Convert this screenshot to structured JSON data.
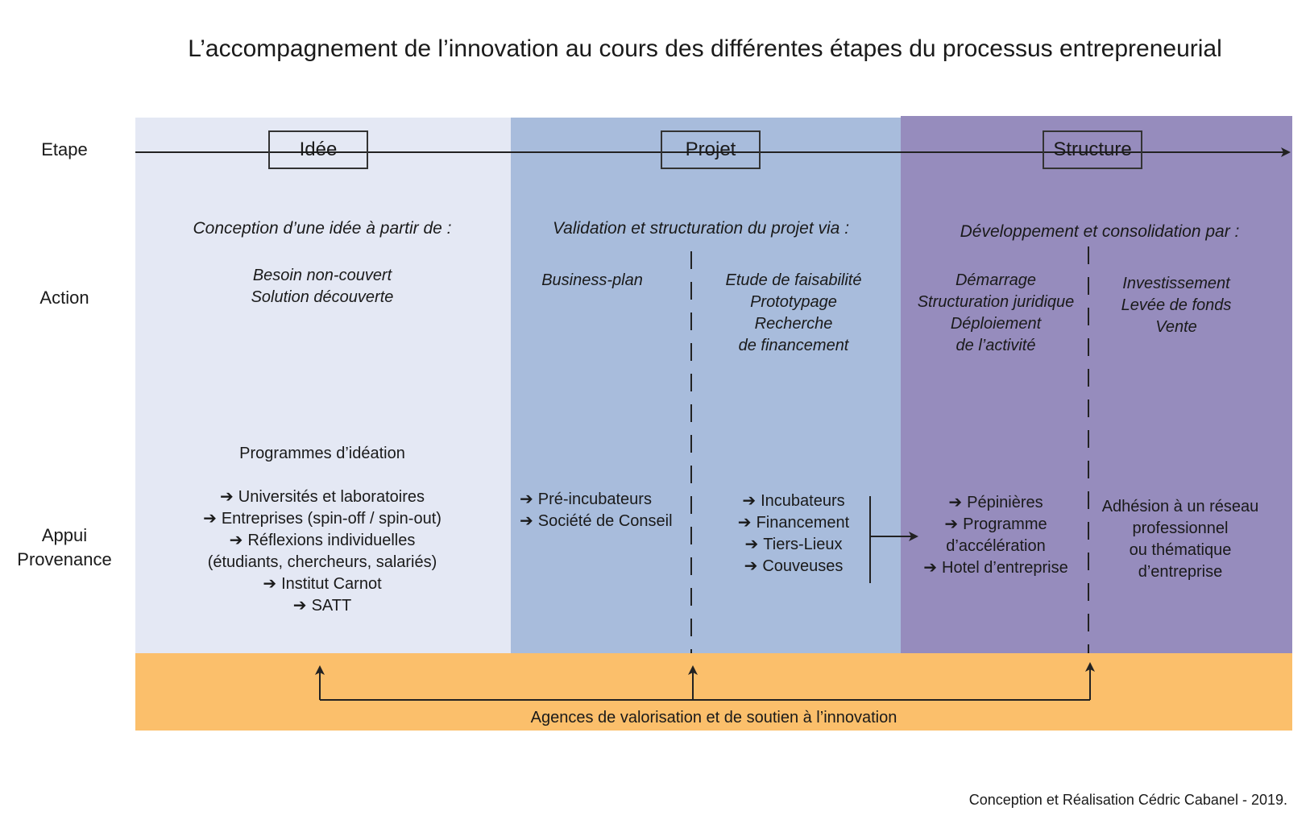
{
  "title": "L’accompagnement de l’innovation au cours des différentes étapes du processus entrepreneurial",
  "row_labels": {
    "etape": "Etape",
    "action": "Action",
    "appui_line1": "Appui",
    "appui_line2": "Provenance"
  },
  "stages": [
    "Idée",
    "Projet",
    "Structure"
  ],
  "actions": {
    "idee": {
      "heading": "Conception d’une idée à partir de :",
      "items": [
        "Besoin non-couvert",
        "Solution découverte"
      ]
    },
    "projet": {
      "heading": "Validation et structuration du projet via :",
      "left_items": [
        "Business-plan"
      ],
      "right_items": [
        "Etude de faisabilité",
        "Prototypage",
        "Recherche",
        "de financement"
      ]
    },
    "structure": {
      "heading": "Développement et consolidation par :",
      "left_items": [
        "Démarrage",
        "Structuration juridique",
        "Déploiement",
        "de l’activité"
      ],
      "right_items": [
        "Investissement",
        "Levée de fonds",
        "Vente"
      ]
    }
  },
  "appui": {
    "idee": {
      "heading": "Programmes d’idéation",
      "items": [
        "Universités et laboratoires",
        "Entreprises (spin-off / spin-out)",
        "Réflexions individuelles",
        "(étudiants, chercheurs, salariés)",
        "Institut Carnot",
        "SATT"
      ]
    },
    "projet_left": [
      "Pré-incubateurs",
      "Société de Conseil"
    ],
    "projet_right": [
      "Incubateurs",
      "Financement",
      "Tiers-Lieux",
      "Couveuses"
    ],
    "structure_left": [
      "Pépinières",
      "Programme",
      "d’accélération",
      "Hotel d’entreprise"
    ],
    "structure_right": [
      "Adhésion à un réseau",
      "professionnel",
      "ou thématique",
      "d’entreprise"
    ]
  },
  "agences_label": "Agences de valorisation et de soutien à l’innovation",
  "footer": "Conception et Réalisation Cédric Cabanel - 2019.",
  "arrow_glyph": "➔",
  "colors": {
    "idee_band": "#e4e8f4",
    "projet_band": "#a8bcdc",
    "structure_band": "#968cbd",
    "agences_band": "#fbbf6b",
    "line": "#222222"
  }
}
